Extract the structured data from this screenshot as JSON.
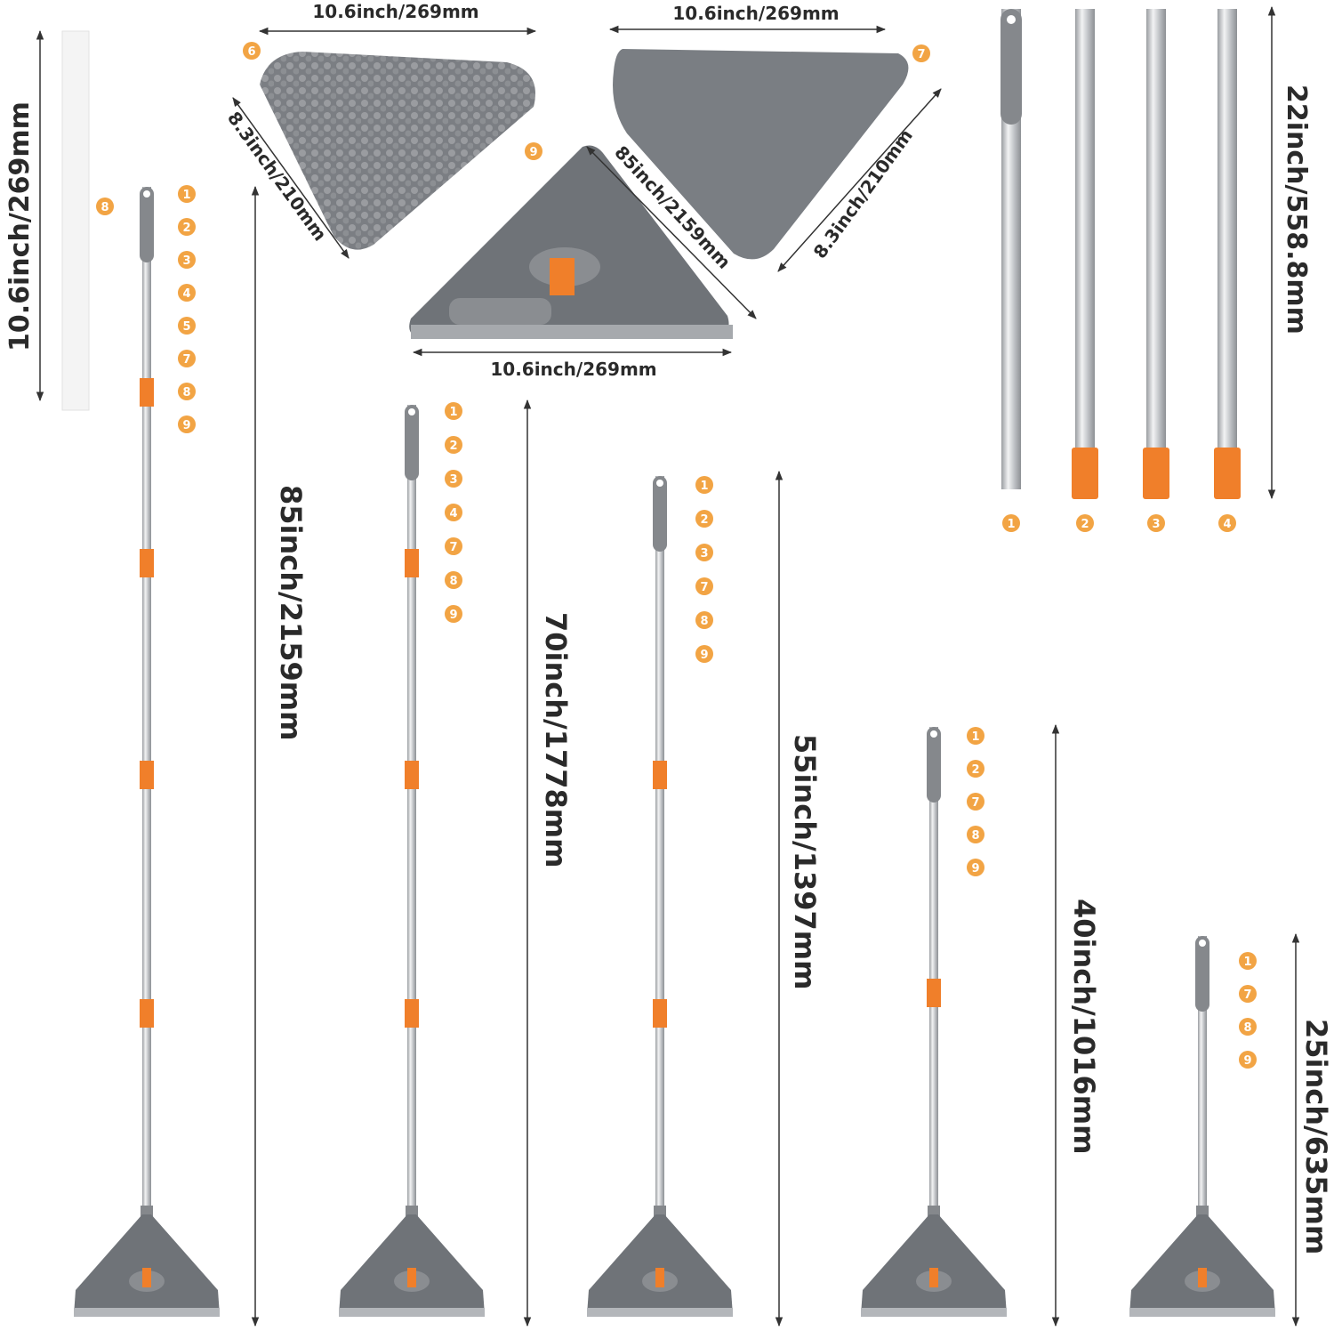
{
  "colors": {
    "accent_orange": "#f07f2a",
    "badge_orange": "#f2a444",
    "head_gray": "#6f7378",
    "pad_gray": "#7d8186",
    "pole_steel": "#c9cbce",
    "text": "#2a2a2a"
  },
  "parts": {
    "chenille_pad": {
      "number": "6",
      "width_label": "10.6inch/269mm",
      "side_label": "8.3inch/210mm"
    },
    "microfiber_pad": {
      "number": "7",
      "width_label": "10.6inch/269mm",
      "side_label": "8.3inch/210mm"
    },
    "mop_base": {
      "number": "9",
      "width_label": "10.6inch/269mm",
      "side_label": "85inch/2159mm"
    },
    "scraper_tube": {
      "number": "8",
      "length_label": "10.6inch/269mm"
    },
    "poles": {
      "numbers": [
        "1",
        "2",
        "3",
        "4"
      ],
      "length_label": "22inch/558.8mm"
    }
  },
  "configurations": [
    {
      "length_label": "85inch/2159mm",
      "parts": [
        "1",
        "2",
        "3",
        "4",
        "5",
        "7",
        "8",
        "9"
      ]
    },
    {
      "length_label": "70inch/1778mm",
      "parts": [
        "1",
        "2",
        "3",
        "4",
        "7",
        "8",
        "9"
      ]
    },
    {
      "length_label": "55inch/1397mm",
      "parts": [
        "1",
        "2",
        "3",
        "7",
        "8",
        "9"
      ]
    },
    {
      "length_label": "40inch/1016mm",
      "parts": [
        "1",
        "2",
        "7",
        "8",
        "9"
      ]
    },
    {
      "length_label": "25inch/635mm",
      "parts": [
        "1",
        "7",
        "8",
        "9"
      ]
    }
  ]
}
